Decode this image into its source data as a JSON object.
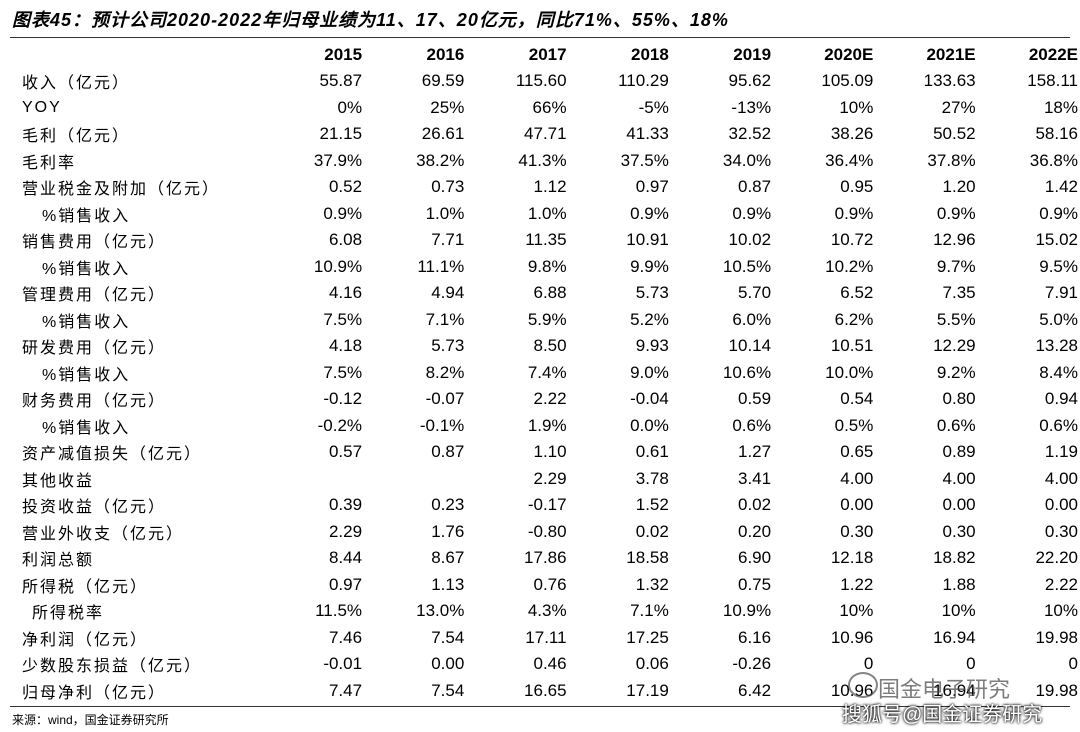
{
  "header": {
    "title": "图表45：预计公司2020-2022年归母业绩为11、17、20亿元，同比71%、55%、18%"
  },
  "table": {
    "columns": [
      "2015",
      "2016",
      "2017",
      "2018",
      "2019",
      "2020E",
      "2021E",
      "2022E"
    ],
    "rows": [
      {
        "label": "收入（亿元）",
        "values": [
          "55.87",
          "69.59",
          "115.60",
          "110.29",
          "95.62",
          "105.09",
          "133.63",
          "158.11"
        ]
      },
      {
        "label": "YOY",
        "values": [
          "0%",
          "25%",
          "66%",
          "-5%",
          "-13%",
          "10%",
          "27%",
          "18%"
        ]
      },
      {
        "label": "毛利（亿元）",
        "values": [
          "21.15",
          "26.61",
          "47.71",
          "41.33",
          "32.52",
          "38.26",
          "50.52",
          "58.16"
        ]
      },
      {
        "label": "毛利率",
        "values": [
          "37.9%",
          "38.2%",
          "41.3%",
          "37.5%",
          "34.0%",
          "36.4%",
          "37.8%",
          "36.8%"
        ]
      },
      {
        "label": "营业税金及附加（亿元）",
        "values": [
          "0.52",
          "0.73",
          "1.12",
          "0.97",
          "0.87",
          "0.95",
          "1.20",
          "1.42"
        ]
      },
      {
        "label": "%销售收入",
        "values": [
          "0.9%",
          "1.0%",
          "1.0%",
          "0.9%",
          "0.9%",
          "0.9%",
          "0.9%",
          "0.9%"
        ]
      },
      {
        "label": "销售费用（亿元）",
        "values": [
          "6.08",
          "7.71",
          "11.35",
          "10.91",
          "10.02",
          "10.72",
          "12.96",
          "15.02"
        ]
      },
      {
        "label": "%销售收入",
        "values": [
          "10.9%",
          "11.1%",
          "9.8%",
          "9.9%",
          "10.5%",
          "10.2%",
          "9.7%",
          "9.5%"
        ]
      },
      {
        "label": "管理费用（亿元）",
        "values": [
          "4.16",
          "4.94",
          "6.88",
          "5.73",
          "5.70",
          "6.52",
          "7.35",
          "7.91"
        ]
      },
      {
        "label": "%销售收入",
        "values": [
          "7.5%",
          "7.1%",
          "5.9%",
          "5.2%",
          "6.0%",
          "6.2%",
          "5.5%",
          "5.0%"
        ]
      },
      {
        "label": "研发费用（亿元）",
        "values": [
          "4.18",
          "5.73",
          "8.50",
          "9.93",
          "10.14",
          "10.51",
          "12.29",
          "13.28"
        ]
      },
      {
        "label": "%销售收入",
        "values": [
          "7.5%",
          "8.2%",
          "7.4%",
          "9.0%",
          "10.6%",
          "10.0%",
          "9.2%",
          "8.4%"
        ]
      },
      {
        "label": "财务费用（亿元）",
        "values": [
          "-0.12",
          "-0.07",
          "2.22",
          "-0.04",
          "0.59",
          "0.54",
          "0.80",
          "0.94"
        ]
      },
      {
        "label": "%销售收入",
        "values": [
          "-0.2%",
          "-0.1%",
          "1.9%",
          "0.0%",
          "0.6%",
          "0.5%",
          "0.6%",
          "0.6%"
        ]
      },
      {
        "label": "资产减值损失（亿元）",
        "values": [
          "0.57",
          "0.87",
          "1.10",
          "0.61",
          "1.27",
          "0.65",
          "0.89",
          "1.19"
        ]
      },
      {
        "label": "其他收益",
        "values": [
          null,
          null,
          "2.29",
          "3.78",
          "3.41",
          "4.00",
          "4.00",
          "4.00"
        ]
      },
      {
        "label": "投资收益（亿元）",
        "values": [
          "0.39",
          "0.23",
          "-0.17",
          "1.52",
          "0.02",
          "0.00",
          "0.00",
          "0.00"
        ]
      },
      {
        "label": "营业外收支（亿元）",
        "values": [
          "2.29",
          "1.76",
          "-0.80",
          "0.02",
          "0.20",
          "0.30",
          "0.30",
          "0.30"
        ]
      },
      {
        "label": "利润总额",
        "values": [
          "8.44",
          "8.67",
          "17.86",
          "18.58",
          "6.90",
          "12.18",
          "18.82",
          "22.20"
        ]
      },
      {
        "label": "所得税（亿元）",
        "values": [
          "0.97",
          "1.13",
          "0.76",
          "1.32",
          "0.75",
          "1.22",
          "1.88",
          "2.22"
        ]
      },
      {
        "label": "所得税率",
        "values": [
          "11.5%",
          "13.0%",
          "4.3%",
          "7.1%",
          "10.9%",
          "10%",
          "10%",
          "10%"
        ]
      },
      {
        "label": "净利润（亿元）",
        "values": [
          "7.46",
          "7.54",
          "17.11",
          "17.25",
          "6.16",
          "10.96",
          "16.94",
          "19.98"
        ]
      },
      {
        "label": "少数股东损益（亿元）",
        "values": [
          "-0.01",
          "0.00",
          "0.46",
          "0.06",
          "-0.26",
          "0",
          "0",
          "0"
        ]
      },
      {
        "label": "归母净利（亿元）",
        "values": [
          "7.47",
          "7.54",
          "16.65",
          "17.19",
          "6.42",
          "10.96",
          "16.94",
          "19.98"
        ]
      }
    ]
  },
  "source": "来源：wind，国金证券研究所",
  "watermark": {
    "line1": "国金电子研究",
    "line2": "搜狐号@国金证券研究"
  }
}
